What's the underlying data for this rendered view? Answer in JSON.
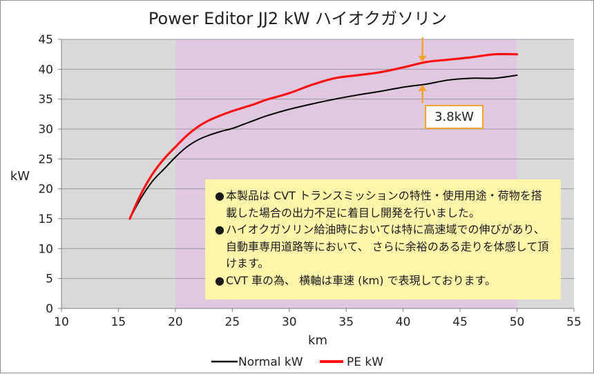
{
  "chart_data": {
    "type": "line",
    "title": "Power Editor JJ2 kW ハイオクガソリン",
    "xlabel": "km",
    "ylabel": "kW",
    "xlim": [
      10,
      55
    ],
    "ylim": [
      0,
      45
    ],
    "x_ticks": [
      10,
      15,
      20,
      25,
      30,
      35,
      40,
      45,
      50,
      55
    ],
    "y_ticks": [
      0,
      5,
      10,
      15,
      20,
      25,
      30,
      35,
      40,
      45
    ],
    "grid": "horizontal",
    "legend_position": "bottom",
    "highlight_region": [
      20,
      50
    ],
    "colors": {
      "plot_background": "#d9d9d9",
      "highlight": "#e1c8e1",
      "normal": "#000000",
      "pe": "#ff1010",
      "annotation": "#f5a32b"
    },
    "series": [
      {
        "name": "Normal kW",
        "color": "#000000",
        "x": [
          16,
          17,
          18,
          19,
          20,
          21,
          22,
          23,
          24,
          25,
          26,
          27,
          28,
          30,
          32,
          34,
          36,
          38,
          40,
          42,
          44,
          46,
          48,
          50
        ],
        "values": [
          15,
          18.5,
          21.3,
          23.3,
          25.3,
          27,
          28.2,
          29,
          29.6,
          30.1,
          30.8,
          31.5,
          32.2,
          33.3,
          34.2,
          35,
          35.7,
          36.3,
          37,
          37.5,
          38.2,
          38.5,
          38.5,
          39
        ]
      },
      {
        "name": "PE kW",
        "color": "#ff1010",
        "x": [
          16,
          17,
          18,
          19,
          20,
          21,
          22,
          23,
          24,
          25,
          26,
          27,
          28,
          30,
          32,
          34,
          36,
          38,
          40,
          42,
          44,
          46,
          48,
          50
        ],
        "values": [
          15,
          19.2,
          22.5,
          25,
          27,
          28.9,
          30.4,
          31.5,
          32.3,
          33,
          33.6,
          34.2,
          34.9,
          36,
          37.4,
          38.5,
          39,
          39.5,
          40.3,
          41.2,
          41.6,
          42,
          42.5,
          42.5
        ]
      }
    ],
    "annotation": {
      "label": "3.8kW",
      "x": 41.7,
      "from": 37.4,
      "to": 41.2
    }
  },
  "note": {
    "bullet": "●",
    "items": [
      "本製品は CVT トランスミッションの特性・使用用途・荷物を搭載した場合の出力不足に着目し開発を行いました。",
      "ハイオクガソリン給油時においては特に高速域での伸びがあり、自動車専用道路等において、 さらに余裕のある走りを体感して頂けます。",
      "CVT 車の為、 横軸は車速 (km) で表現しております。"
    ]
  }
}
